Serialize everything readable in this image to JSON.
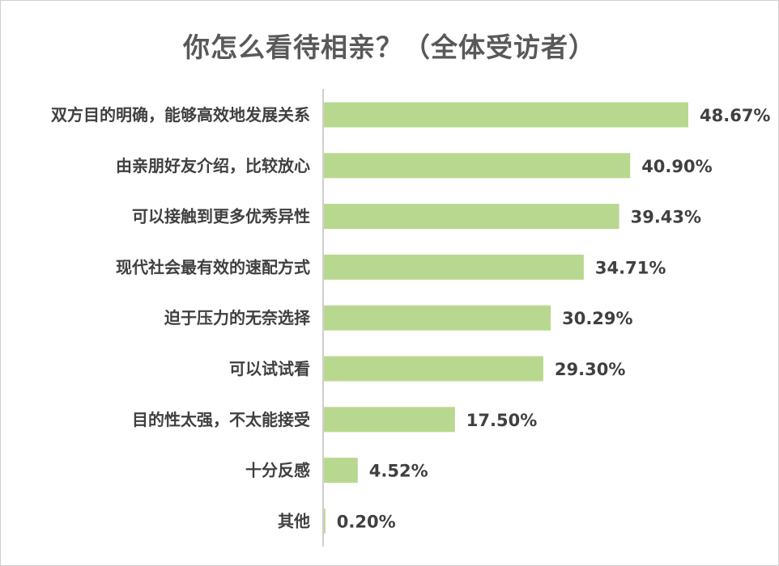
{
  "chart_data": {
    "type": "bar",
    "orientation": "horizontal",
    "title": "你怎么看待相亲？（全体受访者）",
    "categories": [
      "双方目的明确，能够高效地发展关系",
      "由亲朋好友介绍，比较放心",
      "可以接触到更多优秀异性",
      "现代社会最有效的速配方式",
      "迫于压力的无奈选择",
      "可以试试看",
      "目的性太强，不太能接受",
      "十分反感",
      "其他"
    ],
    "values": [
      48.67,
      40.9,
      39.43,
      34.71,
      30.29,
      29.3,
      17.5,
      4.52,
      0.2
    ],
    "value_labels": [
      "48.67%",
      "40.90%",
      "39.43%",
      "34.71%",
      "30.29%",
      "29.30%",
      "17.50%",
      "4.52%",
      "0.20%"
    ],
    "xlim": [
      0,
      48.67
    ],
    "grid": false,
    "legend": "none",
    "bar_color": "#b9d88f",
    "axis_color": "#bfbfbf"
  }
}
